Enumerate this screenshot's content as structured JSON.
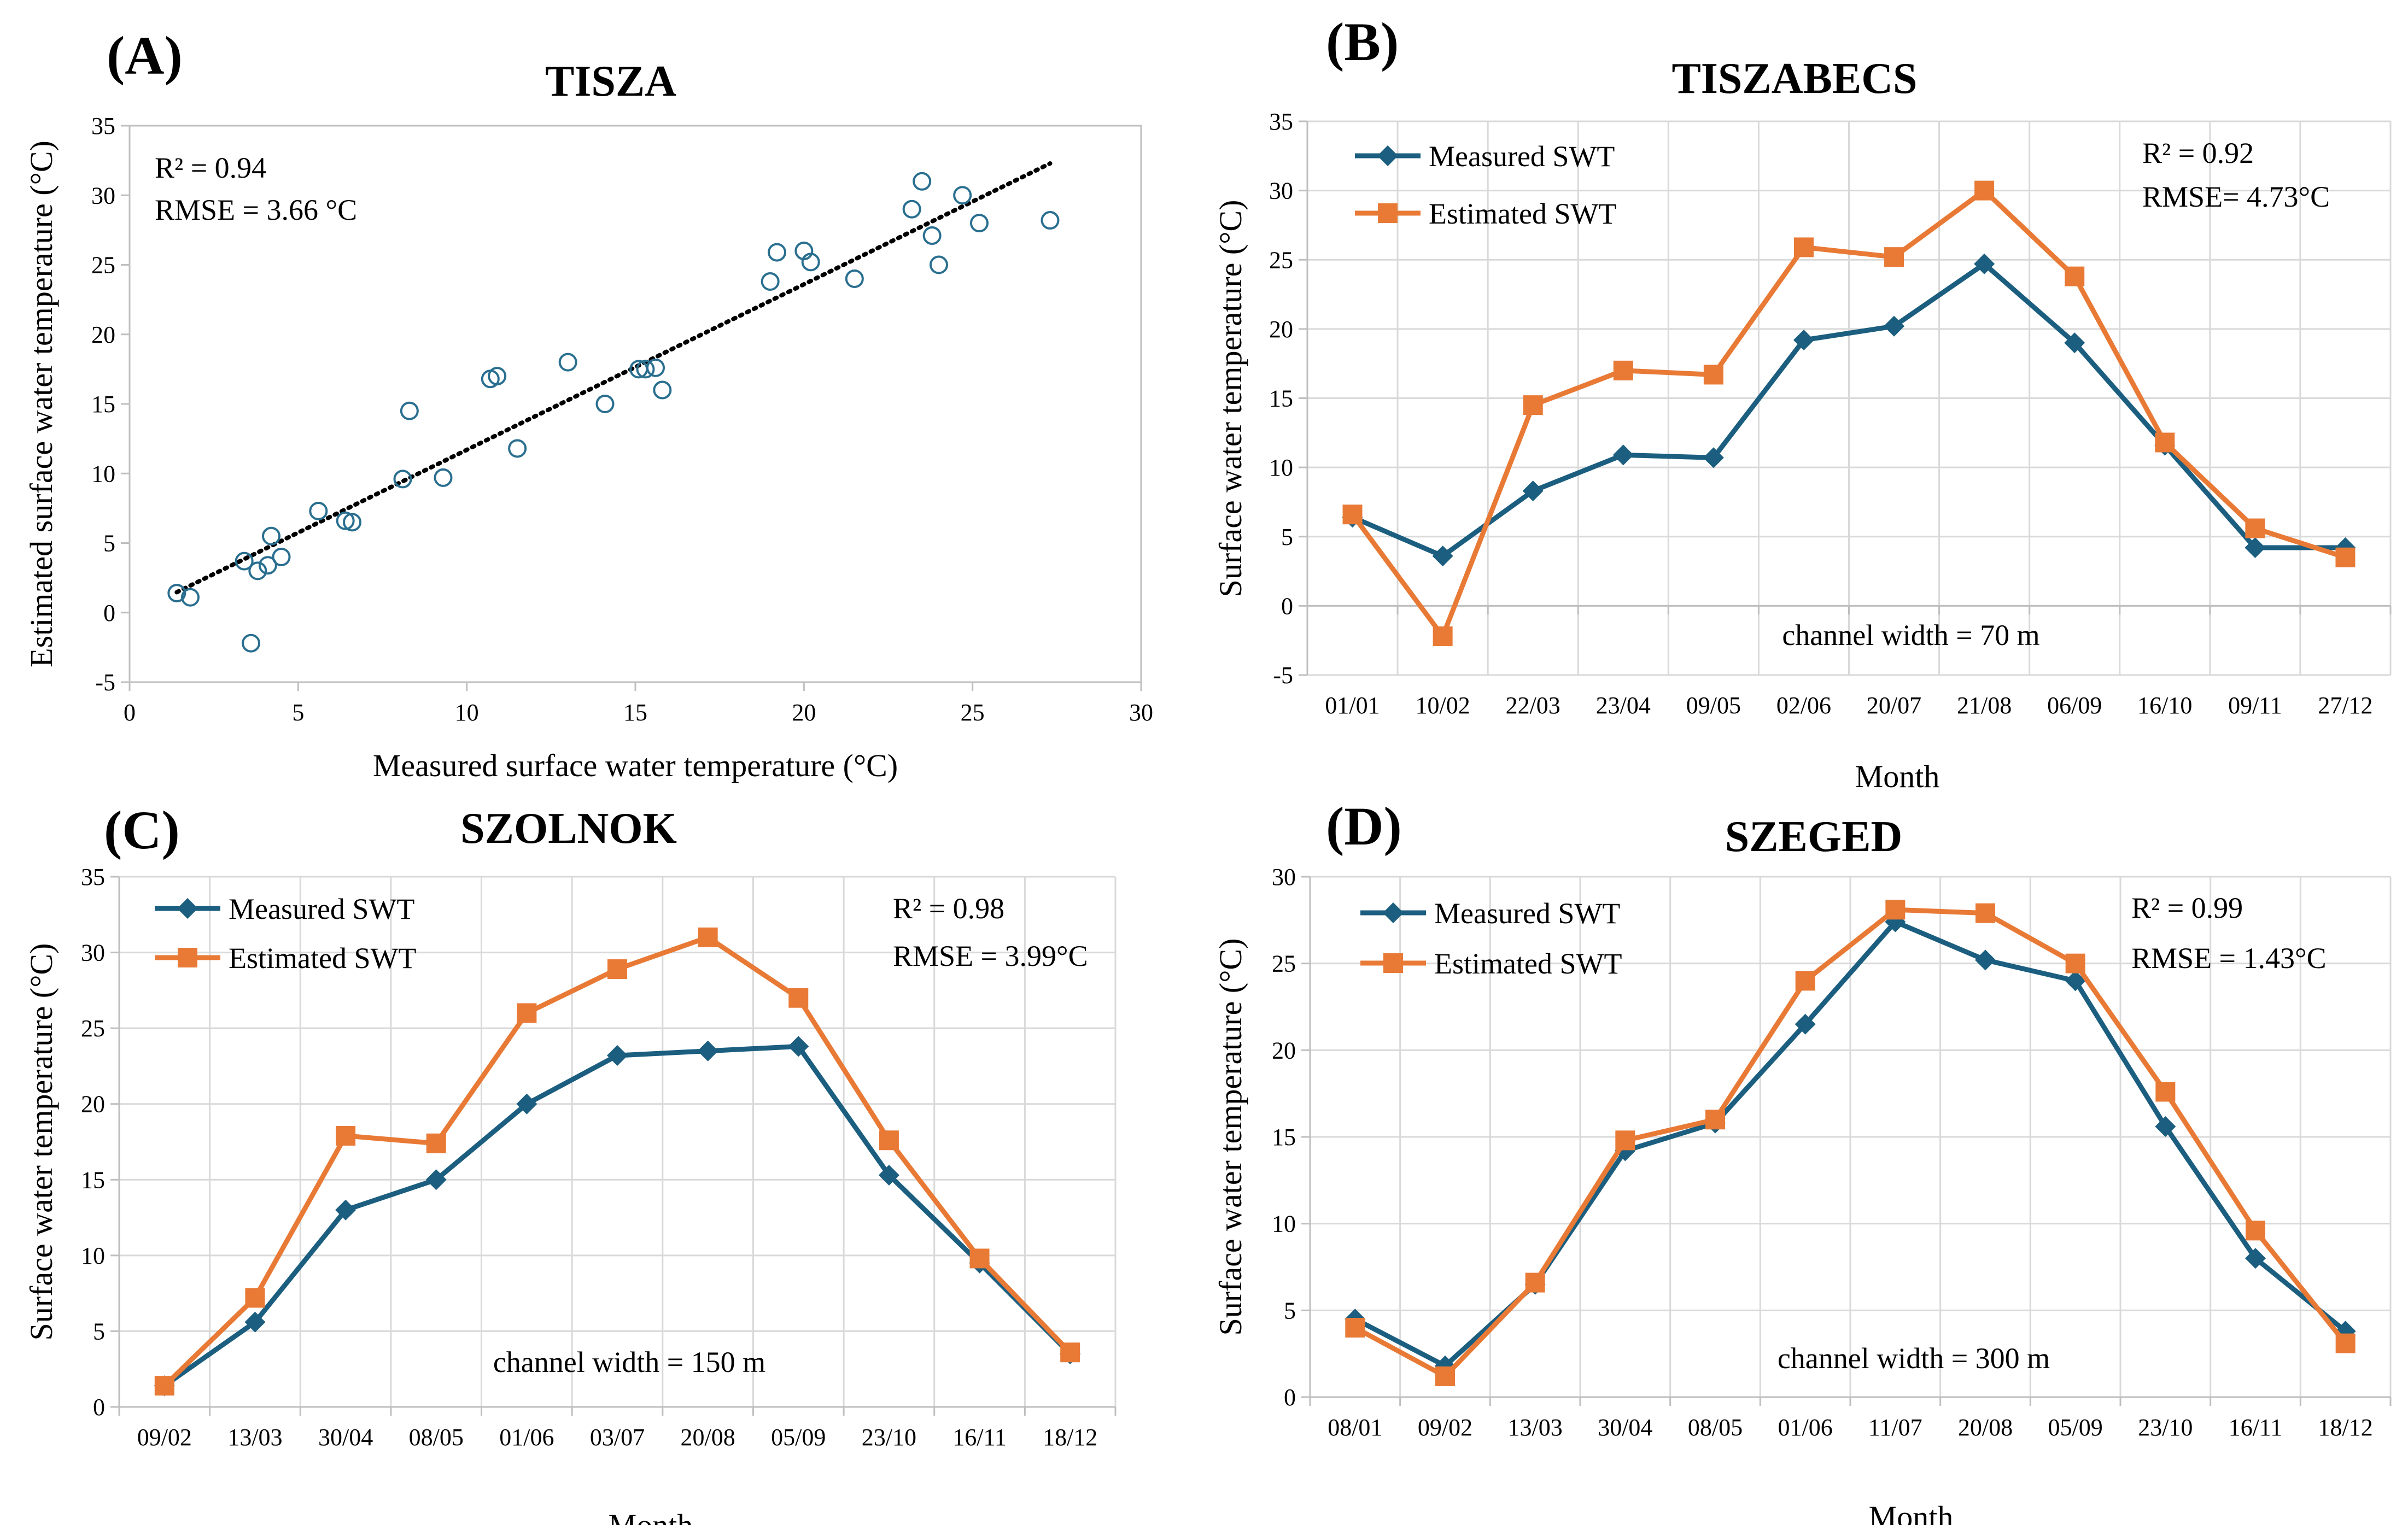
{
  "colors": {
    "measured": "#1b5e7f",
    "estimated": "#e87a36",
    "scatter": "#2a6f90",
    "trend": "#000000"
  },
  "chart_data": [
    {
      "id": "A",
      "type": "scatter",
      "panel_label": "(A)",
      "title": "TISZA",
      "xlabel": "Measured surface water temperature (°C)",
      "ylabel": "Estimated surface water temperature (°C)",
      "xlim": [
        0,
        30
      ],
      "ylim": [
        -5,
        35
      ],
      "xticks": [
        "0",
        "5",
        "10",
        "15",
        "20",
        "25",
        "30"
      ],
      "yticks": [
        "-5",
        "0",
        "5",
        "10",
        "15",
        "20",
        "25",
        "30",
        "35"
      ],
      "stats": [
        "R² = 0.94",
        "RMSE = 3.66 °C"
      ],
      "trendline": {
        "x0": 1.4,
        "x1": 27.3,
        "slope": 1.19,
        "intercept": -0.2
      },
      "points": [
        [
          1.4,
          1.4
        ],
        [
          1.8,
          1.1
        ],
        [
          3.4,
          3.7
        ],
        [
          3.6,
          -2.2
        ],
        [
          3.8,
          3.0
        ],
        [
          4.1,
          3.4
        ],
        [
          4.2,
          5.5
        ],
        [
          4.5,
          4.0
        ],
        [
          5.6,
          7.3
        ],
        [
          6.4,
          6.6
        ],
        [
          6.6,
          6.5
        ],
        [
          8.1,
          9.6
        ],
        [
          8.3,
          14.5
        ],
        [
          9.3,
          9.7
        ],
        [
          10.7,
          16.8
        ],
        [
          10.9,
          17.0
        ],
        [
          11.5,
          11.8
        ],
        [
          13.0,
          18.0
        ],
        [
          14.1,
          15.0
        ],
        [
          15.1,
          17.5
        ],
        [
          15.3,
          17.5
        ],
        [
          15.6,
          17.6
        ],
        [
          15.8,
          16.0
        ],
        [
          19.0,
          23.8
        ],
        [
          19.2,
          25.9
        ],
        [
          20.0,
          26.0
        ],
        [
          20.2,
          25.2
        ],
        [
          21.5,
          24.0
        ],
        [
          23.2,
          29.0
        ],
        [
          23.5,
          31.0
        ],
        [
          23.8,
          27.1
        ],
        [
          24.0,
          25.0
        ],
        [
          24.7,
          30.0
        ],
        [
          25.2,
          28.0
        ],
        [
          27.3,
          28.2
        ]
      ]
    },
    {
      "id": "B",
      "type": "line",
      "panel_label": "(B)",
      "title": "TISZABECS",
      "xlabel": "Month",
      "ylabel": "Surface water temperature (°C)",
      "ylim": [
        -5,
        35
      ],
      "yticks": [
        "-5",
        "0",
        "5",
        "10",
        "15",
        "20",
        "25",
        "30",
        "35"
      ],
      "categories": [
        "01/01",
        "10/02",
        "22/03",
        "23/04",
        "09/05",
        "02/06",
        "20/07",
        "21/08",
        "06/09",
        "16/10",
        "09/11",
        "27/12"
      ],
      "series": [
        {
          "name": "Measured SWT",
          "values": [
            6.4,
            3.6,
            8.3,
            10.9,
            10.7,
            19.2,
            20.2,
            24.7,
            19.0,
            11.6,
            4.2,
            4.2
          ]
        },
        {
          "name": "Estimated SWT",
          "values": [
            6.6,
            -2.2,
            14.5,
            17.0,
            16.7,
            25.9,
            25.2,
            30.0,
            23.8,
            11.8,
            5.6,
            3.5
          ]
        }
      ],
      "stats": [
        "R² = 0.92",
        "RMSE= 4.73°C"
      ],
      "note": "channel width = 70 m"
    },
    {
      "id": "C",
      "type": "line",
      "panel_label": "(C)",
      "title": "SZOLNOK",
      "xlabel": "Month",
      "ylabel": "Surface water temperature (°C)",
      "ylim": [
        0,
        35
      ],
      "yticks": [
        "0",
        "5",
        "10",
        "15",
        "20",
        "25",
        "30",
        "35"
      ],
      "categories": [
        "09/02",
        "13/03",
        "30/04",
        "08/05",
        "01/06",
        "03/07",
        "20/08",
        "05/09",
        "23/10",
        "16/11",
        "18/12"
      ],
      "series": [
        {
          "name": "Measured SWT",
          "values": [
            1.4,
            5.6,
            13.0,
            15.0,
            20.0,
            23.2,
            23.5,
            23.8,
            15.3,
            9.5,
            3.5
          ]
        },
        {
          "name": "Estimated SWT",
          "values": [
            1.4,
            7.2,
            17.9,
            17.4,
            26.0,
            28.9,
            31.0,
            27.0,
            17.6,
            9.8,
            3.6
          ]
        }
      ],
      "stats": [
        "R² = 0.98",
        "RMSE = 3.99°C"
      ],
      "note": "channel width = 150 m"
    },
    {
      "id": "D",
      "type": "line",
      "panel_label": "(D)",
      "title": "SZEGED",
      "xlabel": "Month",
      "ylabel": "Surface water temperature (°C)",
      "ylim": [
        0,
        30
      ],
      "yticks": [
        "0",
        "5",
        "10",
        "15",
        "20",
        "25",
        "30"
      ],
      "categories": [
        "08/01",
        "09/02",
        "13/03",
        "30/04",
        "08/05",
        "01/06",
        "11/07",
        "20/08",
        "05/09",
        "23/10",
        "16/11",
        "18/12"
      ],
      "series": [
        {
          "name": "Measured SWT",
          "values": [
            4.5,
            1.8,
            6.5,
            14.2,
            15.8,
            21.5,
            27.4,
            25.2,
            24.0,
            15.6,
            8.0,
            3.8
          ]
        },
        {
          "name": "Estimated SWT",
          "values": [
            4.0,
            1.2,
            6.6,
            14.8,
            16.0,
            24.0,
            28.1,
            27.9,
            25.0,
            17.6,
            9.6,
            3.1
          ]
        }
      ],
      "stats": [
        "R² = 0.99",
        "RMSE = 1.43°C"
      ],
      "note": "channel width = 300 m"
    }
  ]
}
